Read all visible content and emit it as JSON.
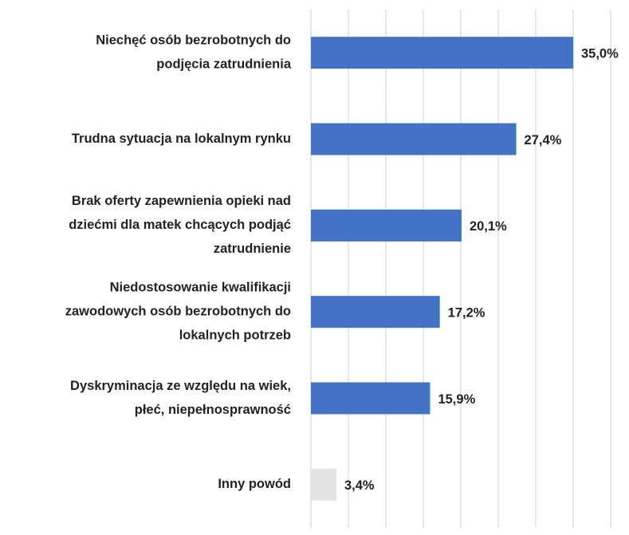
{
  "chart_data": {
    "type": "bar",
    "orientation": "horizontal",
    "categories": [
      [
        "Niechęć osób bezrobotnych do",
        "podjęcia zatrudnienia"
      ],
      [
        "Trudna sytuacja na lokalnym rynku"
      ],
      [
        "Brak oferty zapewnienia opieki nad",
        "dziećmi dla matek chcących podjąć",
        "zatrudnienie"
      ],
      [
        "Niedostosowanie kwalifikacji",
        "zawodowych osób bezrobotnych do",
        "lokalnych potrzeb"
      ],
      [
        "Dyskryminacja ze względu na wiek,",
        "płeć, niepełnosprawność"
      ],
      [
        "Inny powód"
      ]
    ],
    "values": [
      35.0,
      27.4,
      20.1,
      17.2,
      15.9,
      3.4
    ],
    "value_labels": [
      "35,0%",
      "27,4%",
      "20,1%",
      "17,2%",
      "15,9%",
      "3,4%"
    ],
    "colors": [
      "#4472c4",
      "#4472c4",
      "#4472c4",
      "#4472c4",
      "#4472c4",
      "#e3e3e3"
    ],
    "xlim": [
      0,
      40
    ],
    "xticks": [
      0,
      5,
      10,
      15,
      20,
      25,
      30,
      35,
      40
    ],
    "grid": true
  }
}
